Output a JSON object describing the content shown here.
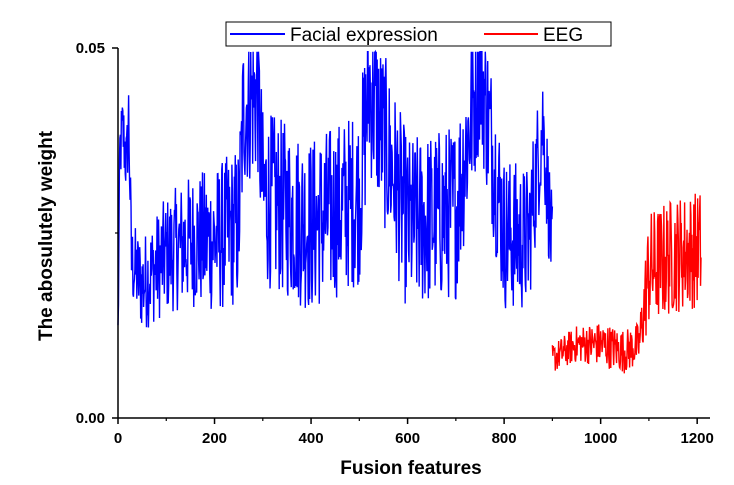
{
  "chart_data": {
    "type": "line",
    "xlabel": "Fusion features",
    "ylabel": "The abosulutely weight",
    "xlim": [
      0,
      1210
    ],
    "ylim": [
      0,
      0.05
    ],
    "x_ticks": [
      0,
      200,
      400,
      600,
      800,
      1000,
      1200
    ],
    "x_tick_labels": [
      "0",
      "200",
      "400",
      "600",
      "800",
      "1000",
      "1200"
    ],
    "y_tick_labels": [
      {
        "value": 0.05,
        "label": "0.05"
      },
      {
        "value": 0.0,
        "label": "0.00"
      }
    ],
    "legend_position": "top",
    "series": [
      {
        "name": "Facial expression",
        "color": "#0000ff",
        "x_range": [
          0,
          900
        ],
        "profile": [
          [
            0,
            0.011
          ],
          [
            4,
            0.036
          ],
          [
            10,
            0.039
          ],
          [
            18,
            0.034
          ],
          [
            22,
            0.041
          ],
          [
            28,
            0.021
          ],
          [
            50,
            0.018
          ],
          [
            100,
            0.022
          ],
          [
            150,
            0.024
          ],
          [
            200,
            0.024
          ],
          [
            250,
            0.026
          ],
          [
            260,
            0.042
          ],
          [
            290,
            0.044
          ],
          [
            300,
            0.03
          ],
          [
            400,
            0.026
          ],
          [
            500,
            0.03
          ],
          [
            520,
            0.045
          ],
          [
            600,
            0.026
          ],
          [
            700,
            0.028
          ],
          [
            750,
            0.048
          ],
          [
            800,
            0.025
          ],
          [
            850,
            0.024
          ],
          [
            880,
            0.04
          ],
          [
            900,
            0.022
          ]
        ],
        "amplitude": [
          [
            0,
            0.005
          ],
          [
            100,
            0.008
          ],
          [
            250,
            0.011
          ],
          [
            300,
            0.012
          ],
          [
            500,
            0.012
          ],
          [
            700,
            0.012
          ],
          [
            850,
            0.01
          ],
          [
            900,
            0.007
          ]
        ]
      },
      {
        "name": "EEG",
        "color": "#ff0000",
        "x_range": [
          900,
          1208
        ],
        "profile": [
          [
            900,
            0.008
          ],
          [
            950,
            0.01
          ],
          [
            1000,
            0.01
          ],
          [
            1050,
            0.009
          ],
          [
            1080,
            0.01
          ],
          [
            1100,
            0.02
          ],
          [
            1150,
            0.022
          ],
          [
            1208,
            0.023
          ]
        ],
        "amplitude": [
          [
            900,
            0.002
          ],
          [
            1000,
            0.003
          ],
          [
            1080,
            0.003
          ],
          [
            1100,
            0.008
          ],
          [
            1208,
            0.008
          ]
        ]
      }
    ]
  }
}
